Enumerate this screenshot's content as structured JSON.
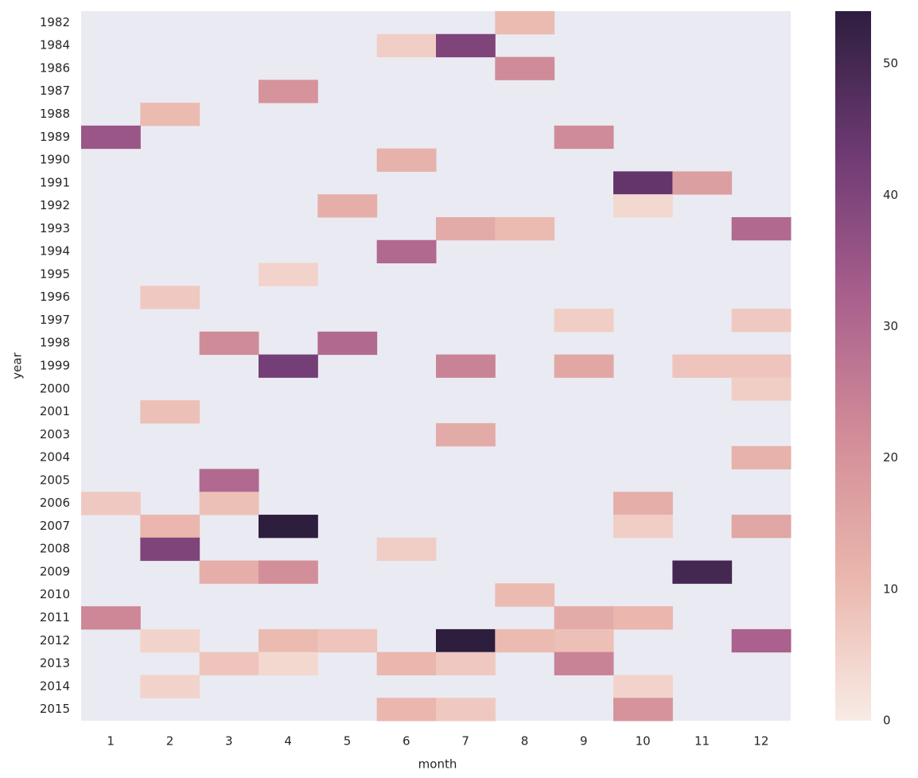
{
  "chart_data": {
    "type": "heatmap",
    "xlabel": "month",
    "ylabel": "year",
    "x": [
      1,
      2,
      3,
      4,
      5,
      6,
      7,
      8,
      9,
      10,
      11,
      12
    ],
    "y": [
      1982,
      1984,
      1986,
      1987,
      1988,
      1989,
      1990,
      1991,
      1992,
      1993,
      1994,
      1995,
      1996,
      1997,
      1998,
      1999,
      2000,
      2001,
      2003,
      2004,
      2005,
      2006,
      2007,
      2008,
      2009,
      2010,
      2011,
      2012,
      2013,
      2014,
      2015
    ],
    "values": [
      [
        null,
        null,
        null,
        null,
        null,
        null,
        null,
        10,
        null,
        null,
        null,
        null
      ],
      [
        null,
        null,
        null,
        null,
        null,
        6,
        40,
        null,
        null,
        null,
        null,
        null
      ],
      [
        null,
        null,
        null,
        null,
        null,
        null,
        null,
        22,
        null,
        null,
        null,
        null
      ],
      [
        null,
        null,
        null,
        20,
        null,
        null,
        null,
        null,
        null,
        null,
        null,
        null
      ],
      [
        null,
        10,
        null,
        null,
        null,
        null,
        null,
        null,
        null,
        null,
        null,
        null
      ],
      [
        35,
        null,
        null,
        null,
        null,
        null,
        null,
        null,
        22,
        null,
        null,
        null
      ],
      [
        null,
        null,
        null,
        null,
        null,
        12,
        null,
        null,
        null,
        null,
        null,
        null
      ],
      [
        null,
        null,
        null,
        null,
        null,
        null,
        null,
        null,
        null,
        45,
        17,
        null
      ],
      [
        null,
        null,
        null,
        null,
        13,
        null,
        null,
        null,
        null,
        4,
        null,
        null
      ],
      [
        null,
        null,
        null,
        null,
        null,
        null,
        14,
        10,
        null,
        null,
        null,
        30
      ],
      [
        null,
        null,
        null,
        null,
        null,
        30,
        null,
        null,
        null,
        null,
        null,
        null
      ],
      [
        null,
        null,
        null,
        5,
        null,
        null,
        null,
        null,
        null,
        null,
        null,
        null
      ],
      [
        null,
        7,
        null,
        null,
        null,
        null,
        null,
        null,
        null,
        null,
        null,
        null
      ],
      [
        null,
        null,
        null,
        null,
        null,
        null,
        null,
        null,
        6,
        null,
        null,
        7
      ],
      [
        null,
        null,
        22,
        null,
        30,
        null,
        null,
        null,
        null,
        null,
        null,
        null
      ],
      [
        null,
        null,
        null,
        42,
        null,
        null,
        24,
        null,
        15,
        null,
        8,
        8
      ],
      [
        null,
        null,
        null,
        null,
        null,
        null,
        null,
        null,
        null,
        null,
        null,
        6
      ],
      [
        null,
        9,
        null,
        null,
        null,
        null,
        null,
        null,
        null,
        null,
        null,
        null
      ],
      [
        null,
        null,
        null,
        null,
        null,
        null,
        14,
        null,
        null,
        null,
        null,
        null
      ],
      [
        null,
        null,
        null,
        null,
        null,
        null,
        null,
        null,
        null,
        null,
        null,
        12
      ],
      [
        null,
        null,
        30,
        null,
        null,
        null,
        null,
        null,
        null,
        null,
        null,
        null
      ],
      [
        7,
        null,
        9,
        null,
        null,
        null,
        null,
        null,
        null,
        13,
        null,
        null
      ],
      [
        null,
        11,
        null,
        54,
        null,
        null,
        null,
        null,
        null,
        6,
        null,
        15
      ],
      [
        null,
        40,
        null,
        null,
        null,
        6,
        null,
        null,
        null,
        null,
        null,
        null
      ],
      [
        null,
        null,
        13,
        21,
        null,
        null,
        null,
        null,
        null,
        null,
        50,
        null
      ],
      [
        null,
        null,
        null,
        null,
        null,
        null,
        null,
        10,
        null,
        null,
        null,
        null
      ],
      [
        23,
        null,
        null,
        null,
        null,
        null,
        null,
        null,
        14,
        11,
        null,
        null
      ],
      [
        null,
        5,
        null,
        10,
        8,
        null,
        54,
        10,
        9,
        null,
        null,
        32
      ],
      [
        null,
        null,
        8,
        4,
        null,
        11,
        7,
        null,
        24,
        null,
        null,
        null
      ],
      [
        null,
        5,
        null,
        null,
        null,
        null,
        null,
        null,
        null,
        5,
        null,
        null
      ],
      [
        null,
        null,
        null,
        null,
        null,
        11,
        7,
        null,
        null,
        20,
        null,
        null
      ]
    ],
    "background": "#eaeaf2",
    "colorscale": [
      "#f8ebe5",
      "#eab7ad",
      "#d28d98",
      "#a85f8d",
      "#6e3a73",
      "#2d1e3e"
    ],
    "clim": [
      0,
      54
    ],
    "cticks": [
      0,
      10,
      20,
      30,
      40,
      50
    ]
  }
}
